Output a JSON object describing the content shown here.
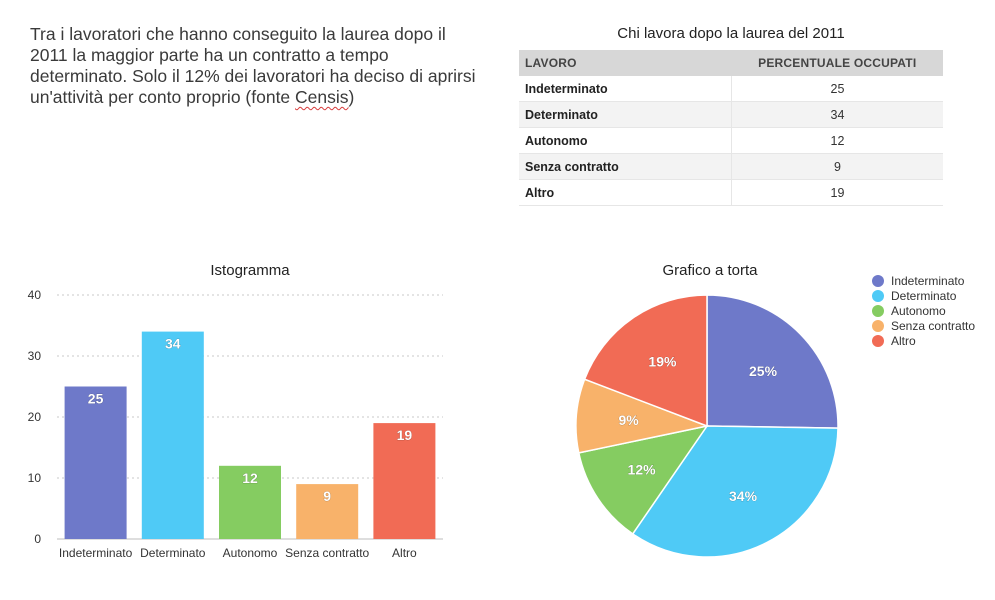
{
  "intro": {
    "text_main": "Tra i lavoratori che hanno conseguito la laurea dopo il 2011 la maggior parte ha un contratto a tempo determinato. Solo il 12% dei lavoratori ha deciso di aprirsi un'attività per conto proprio (fonte ",
    "text_source": "Censis",
    "text_end": ")"
  },
  "table": {
    "title": "Chi lavora dopo la laurea del 2011",
    "col_category": "LAVORO",
    "col_value": "PERCENTUALE OCCUPATI"
  },
  "colors": {
    "Indeterminato": "#6e79c9",
    "Determinato": "#4fcaf6",
    "Autonomo": "#85cc61",
    "Senza contratto": "#f8b26a",
    "Altro": "#f16b55"
  },
  "chart_data": [
    {
      "type": "table",
      "title": "Chi lavora dopo la laurea del 2011",
      "columns": [
        "LAVORO",
        "PERCENTUALE OCCUPATI"
      ],
      "rows": [
        [
          "Indeterminato",
          "25"
        ],
        [
          "Determinato",
          "34"
        ],
        [
          "Autonomo",
          "12"
        ],
        [
          "Senza contratto",
          "9"
        ],
        [
          "Altro",
          "19"
        ]
      ]
    },
    {
      "type": "bar",
      "title": "Istogramma",
      "categories": [
        "Indeterminato",
        "Determinato",
        "Autonomo",
        "Senza contratto",
        "Altro"
      ],
      "values": [
        25,
        34,
        12,
        9,
        19
      ],
      "ylim": [
        0,
        40
      ],
      "yticks": [
        0,
        10,
        20,
        30,
        40
      ],
      "grid": true,
      "data_labels": true
    },
    {
      "type": "pie",
      "title": "Grafico a torta",
      "categories": [
        "Indeterminato",
        "Determinato",
        "Autonomo",
        "Senza contratto",
        "Altro"
      ],
      "values": [
        25,
        34,
        12,
        9,
        19
      ],
      "labels": [
        "25%",
        "34%",
        "12%",
        "9%",
        "19%"
      ],
      "legend": "right"
    }
  ]
}
